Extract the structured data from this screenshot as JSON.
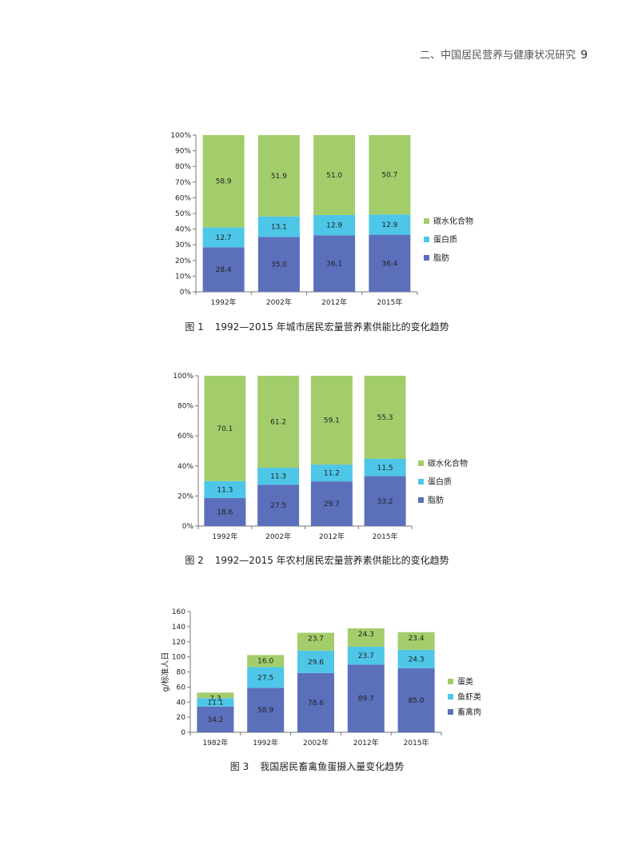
{
  "page": {
    "running_header": "二、中国居民营养与健康状况研究",
    "page_number": "9"
  },
  "figures": [
    {
      "number": "图 1",
      "caption": "1992—2015 年城市居民宏量营养素供能比的变化趋势"
    },
    {
      "number": "图 2",
      "caption": "1992—2015 年农村居民宏量营养素供能比的变化趋势"
    },
    {
      "number": "图 3",
      "caption": "我国居民畜禽鱼蛋摄入量变化趋势"
    }
  ],
  "chart_data": [
    {
      "type": "bar",
      "stacked": true,
      "categories": [
        "1992年",
        "2002年",
        "2012年",
        "2015年"
      ],
      "series": [
        {
          "name": "脂肪",
          "values": [
            28.4,
            35.0,
            36.1,
            36.4
          ],
          "color": "#5b6fbb"
        },
        {
          "name": "蛋白质",
          "values": [
            12.7,
            13.1,
            12.9,
            12.9
          ],
          "color": "#4ec6e8"
        },
        {
          "name": "碳水化合物",
          "values": [
            58.9,
            51.9,
            51.0,
            50.7
          ],
          "color": "#a3cd6b"
        }
      ],
      "labels": [
        [
          "28.4",
          "35.0",
          "36.1",
          "36.4"
        ],
        [
          "12.7",
          "13.1",
          "12.9",
          "12.9"
        ],
        [
          "58.9",
          "51.9",
          "51.0",
          "50.7"
        ]
      ],
      "ylim": [
        0,
        100
      ],
      "yticks": [
        "0%",
        "10%",
        "20%",
        "30%",
        "40%",
        "50%",
        "60%",
        "70%",
        "80%",
        "90%",
        "100%"
      ],
      "ylabel": "",
      "legend": "right",
      "grid": false
    },
    {
      "type": "bar",
      "stacked": true,
      "categories": [
        "1992年",
        "2002年",
        "2012年",
        "2015年"
      ],
      "series": [
        {
          "name": "脂肪",
          "values": [
            18.6,
            27.5,
            29.7,
            33.2
          ],
          "color": "#5b6fbb"
        },
        {
          "name": "蛋白质",
          "values": [
            11.3,
            11.3,
            11.2,
            11.5
          ],
          "color": "#4ec6e8"
        },
        {
          "name": "碳水化合物",
          "values": [
            70.1,
            61.2,
            59.1,
            55.3
          ],
          "color": "#a3cd6b"
        }
      ],
      "labels": [
        [
          "18.6",
          "27.5",
          "29.7",
          "33.2"
        ],
        [
          "11.3",
          "11.3",
          "11.2",
          "11.5"
        ],
        [
          "70.1",
          "61.2",
          "59.1",
          "55.3"
        ]
      ],
      "ylim": [
        0,
        100
      ],
      "yticks": [
        "0%",
        "20%",
        "40%",
        "60%",
        "80%",
        "100%"
      ],
      "ylabel": "",
      "legend": "right",
      "grid": false
    },
    {
      "type": "bar",
      "stacked": true,
      "categories": [
        "1982年",
        "1992年",
        "2002年",
        "2012年",
        "2015年"
      ],
      "series": [
        {
          "name": "畜禽肉",
          "values": [
            34.2,
            58.9,
            78.6,
            89.7,
            85.0
          ],
          "color": "#5b6fbb"
        },
        {
          "name": "鱼虾类",
          "values": [
            11.1,
            27.5,
            29.6,
            23.7,
            24.3
          ],
          "color": "#4ec6e8"
        },
        {
          "name": "蛋类",
          "values": [
            7.3,
            16.0,
            23.7,
            24.3,
            23.4
          ],
          "color": "#a3cd6b"
        }
      ],
      "labels": [
        [
          "34.2",
          "58.9",
          "78.6",
          "89.7",
          "85.0"
        ],
        [
          "11.1",
          "27.5",
          "29.6",
          "23.7",
          "24.3"
        ],
        [
          "7.3",
          "16.0",
          "23.7",
          "24.3",
          "23.4"
        ]
      ],
      "ylim": [
        0,
        160
      ],
      "yticks": [
        "0",
        "20",
        "40",
        "60",
        "80",
        "100",
        "120",
        "140",
        "160"
      ],
      "ylabel": "g/标准人日",
      "legend": "right",
      "grid": false
    }
  ]
}
